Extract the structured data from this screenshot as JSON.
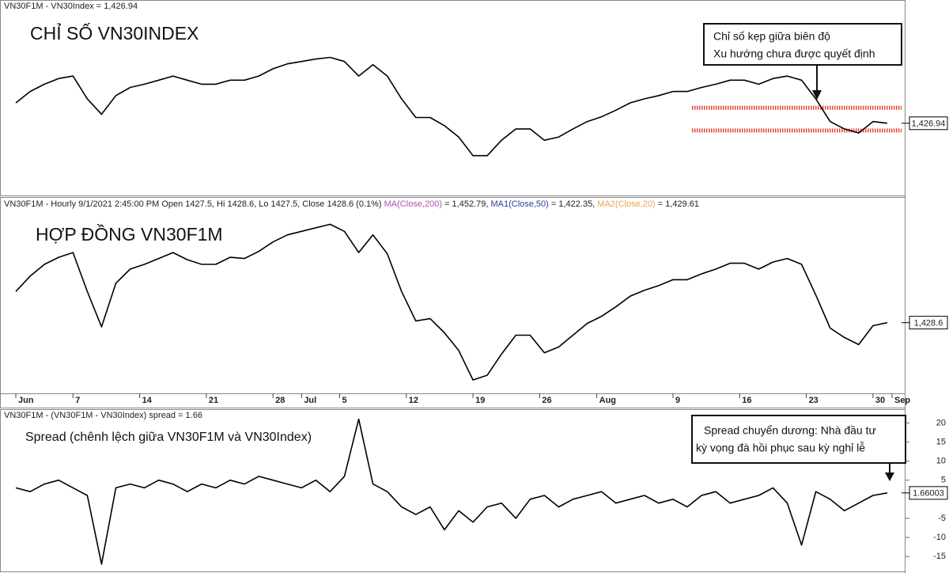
{
  "chart_data": [
    {
      "type": "line",
      "header": "VN30F1M - VN30Index = 1,426.94",
      "label": "CHỈ SỐ VN30INDEX",
      "annotation": [
        "Chỉ số kẹp giữa biên độ",
        "Xu hướng chưa được quyết định"
      ],
      "last_label": {
        "value": 1426.94,
        "label": "1,426.94"
      },
      "bands": [
        1446,
        1418
      ],
      "band_color": "#e8443a",
      "color": "#000000",
      "xlim": [
        -1,
        93
      ],
      "ylim": [
        1340,
        1565
      ],
      "x": [
        0,
        1.5,
        3,
        4.5,
        6,
        7.5,
        9,
        10.5,
        12,
        13.5,
        15,
        16.5,
        18,
        19.5,
        21,
        22.5,
        24,
        25.5,
        27,
        28.5,
        30,
        31.5,
        33,
        34.5,
        36,
        37.5,
        39,
        40.5,
        42,
        43.5,
        45,
        46.5,
        48,
        49.5,
        51,
        52.5,
        54,
        55.5,
        57,
        58.5,
        60,
        61.5,
        63,
        64.5,
        66,
        67.5,
        69,
        70.5,
        72,
        73.5,
        75,
        76.5,
        78,
        79.5,
        81,
        82.5,
        84,
        85.5,
        87,
        88.5,
        90,
        91.5
      ],
      "values": [
        1452,
        1466,
        1475,
        1482,
        1485,
        1457,
        1438,
        1461,
        1471,
        1475,
        1480,
        1485,
        1480,
        1475,
        1475,
        1480,
        1480,
        1485,
        1494,
        1500,
        1503,
        1506,
        1508,
        1503,
        1485,
        1499,
        1485,
        1457,
        1434,
        1434,
        1424,
        1410,
        1387,
        1387,
        1406,
        1420,
        1420,
        1406,
        1410,
        1420,
        1429,
        1435,
        1443,
        1452,
        1457,
        1461,
        1466,
        1466,
        1471,
        1475,
        1480,
        1480,
        1475,
        1482,
        1485,
        1480,
        1457,
        1429,
        1420,
        1415,
        1429,
        1427
      ]
    },
    {
      "type": "line",
      "header": [
        {
          "text": "VN30F1M - Hourly 9/1/2021 2:45:00 PM Open 1427.5, Hi 1428.6, Lo 1427.5, Close 1428.6 (0.1%) ",
          "color": "#222222"
        },
        {
          "text": "MA(Close,200)",
          "color": "#b04fb0"
        },
        {
          "text": " = 1,452.79, ",
          "color": "#222222"
        },
        {
          "text": "MA1(Close,50)",
          "color": "#2a3f9e"
        },
        {
          "text": " = 1,422.35, ",
          "color": "#222222"
        },
        {
          "text": "MA2(Close,20)",
          "color": "#f0a050"
        },
        {
          "text": " = 1,429.61",
          "color": "#222222"
        }
      ],
      "label": "HỢP ĐỒNG VN30F1M",
      "last_label": {
        "value": 1428.6,
        "label": "1,428.6"
      },
      "color": "#000000",
      "xlim": [
        -1,
        93
      ],
      "ylim": [
        1370,
        1525
      ],
      "xticks": [
        {
          "value": 0,
          "label": "Jun"
        },
        {
          "value": 6,
          "label": "7"
        },
        {
          "value": 13,
          "label": "14"
        },
        {
          "value": 20,
          "label": "21"
        },
        {
          "value": 27,
          "label": "28"
        },
        {
          "value": 30,
          "label": "Jul"
        },
        {
          "value": 34,
          "label": "5"
        },
        {
          "value": 41,
          "label": "12"
        },
        {
          "value": 48,
          "label": "19"
        },
        {
          "value": 55,
          "label": "26"
        },
        {
          "value": 61,
          "label": "Aug"
        },
        {
          "value": 69,
          "label": "9"
        },
        {
          "value": 76,
          "label": "16"
        },
        {
          "value": 83,
          "label": "23"
        },
        {
          "value": 90,
          "label": "30"
        },
        {
          "value": 92,
          "label": "Sep"
        }
      ],
      "x": [
        0,
        1.5,
        3,
        4.5,
        6,
        7.5,
        9,
        10.5,
        12,
        13.5,
        15,
        16.5,
        18,
        19.5,
        21,
        22.5,
        24,
        25.5,
        27,
        28.5,
        30,
        31.5,
        33,
        34.5,
        36,
        37.5,
        39,
        40.5,
        42,
        43.5,
        45,
        46.5,
        48,
        49.5,
        51,
        52.5,
        54,
        55.5,
        57,
        58.5,
        60,
        61.5,
        63,
        64.5,
        66,
        67.5,
        69,
        70.5,
        72,
        73.5,
        75,
        76.5,
        78,
        79.5,
        81,
        82.5,
        84,
        85.5,
        87,
        88.5,
        90,
        91.5
      ],
      "values": [
        1455,
        1468,
        1478,
        1484,
        1488,
        1455,
        1425,
        1462,
        1474,
        1478,
        1483,
        1488,
        1482,
        1478,
        1478,
        1484,
        1483,
        1489,
        1497,
        1503,
        1506,
        1509,
        1512,
        1506,
        1488,
        1503,
        1487,
        1455,
        1430,
        1432,
        1420,
        1405,
        1380,
        1384,
        1402,
        1418,
        1418,
        1403,
        1408,
        1418,
        1428,
        1434,
        1442,
        1451,
        1456,
        1460,
        1465,
        1465,
        1470,
        1474,
        1479,
        1479,
        1474,
        1480,
        1483,
        1478,
        1452,
        1424,
        1416,
        1410,
        1426,
        1428.6
      ]
    },
    {
      "type": "line",
      "header": "VN30F1M - (VN30F1M - VN30Index) spread = 1.66",
      "label": "Spread (chênh lệch giữa VN30F1M và VN30Index)",
      "annotation": [
        "Spread chuyển dương: Nhà đầu tư",
        "kỳ vọng đà hồi phục sau kỳ nghỉ lễ"
      ],
      "last_label": {
        "value": 1.66003,
        "label": "1.66003"
      },
      "color": "#000000",
      "xlim": [
        -1,
        93
      ],
      "ylim": [
        -18.5,
        23
      ],
      "yticks": [
        20,
        15,
        10,
        5,
        -5,
        -10,
        -15
      ],
      "x": [
        0,
        1.5,
        3,
        4.5,
        6,
        7.5,
        9,
        10.5,
        12,
        13.5,
        15,
        16.5,
        18,
        19.5,
        21,
        22.5,
        24,
        25.5,
        27,
        28.5,
        30,
        31.5,
        33,
        34.5,
        36,
        37.5,
        39,
        40.5,
        42,
        43.5,
        45,
        46.5,
        48,
        49.5,
        51,
        52.5,
        54,
        55.5,
        57,
        58.5,
        60,
        61.5,
        63,
        64.5,
        66,
        67.5,
        69,
        70.5,
        72,
        73.5,
        75,
        76.5,
        78,
        79.5,
        81,
        82.5,
        84,
        85.5,
        87,
        88.5,
        90,
        91.5
      ],
      "values": [
        3,
        2,
        4,
        5,
        3,
        1,
        -17,
        3,
        4,
        3,
        5,
        4,
        2,
        4,
        3,
        5,
        4,
        6,
        5,
        4,
        3,
        5,
        2,
        6,
        21,
        4,
        2,
        -2,
        -4,
        -2,
        -8,
        -3,
        -6,
        -2,
        -1,
        -5,
        0,
        1,
        -2,
        0,
        1,
        2,
        -1,
        0,
        1,
        -1,
        0,
        -2,
        1,
        2,
        -1,
        0,
        1,
        3,
        -1,
        -12,
        2,
        0,
        -3,
        -1,
        1,
        1.66
      ]
    }
  ]
}
